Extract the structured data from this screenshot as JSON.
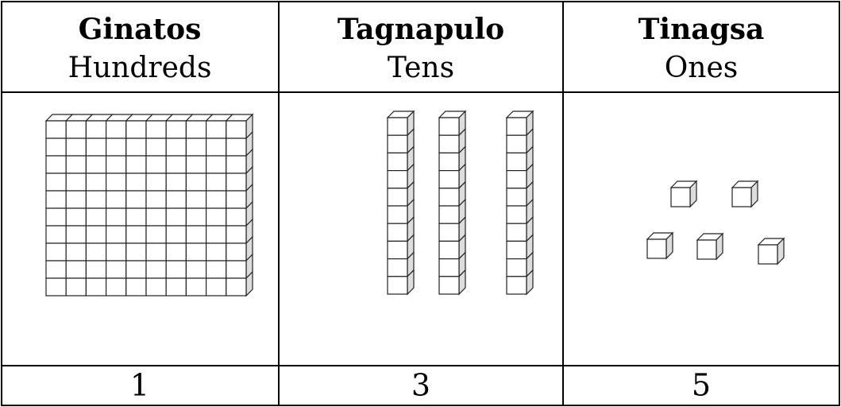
{
  "table": {
    "columns": [
      {
        "title": "Ginatos",
        "subtitle": "Hundreds",
        "count": 1
      },
      {
        "title": "Tagnapulo",
        "subtitle": "Tens",
        "count": 3
      },
      {
        "title": "Tinagsa",
        "subtitle": "Ones",
        "count": 5
      }
    ]
  }
}
